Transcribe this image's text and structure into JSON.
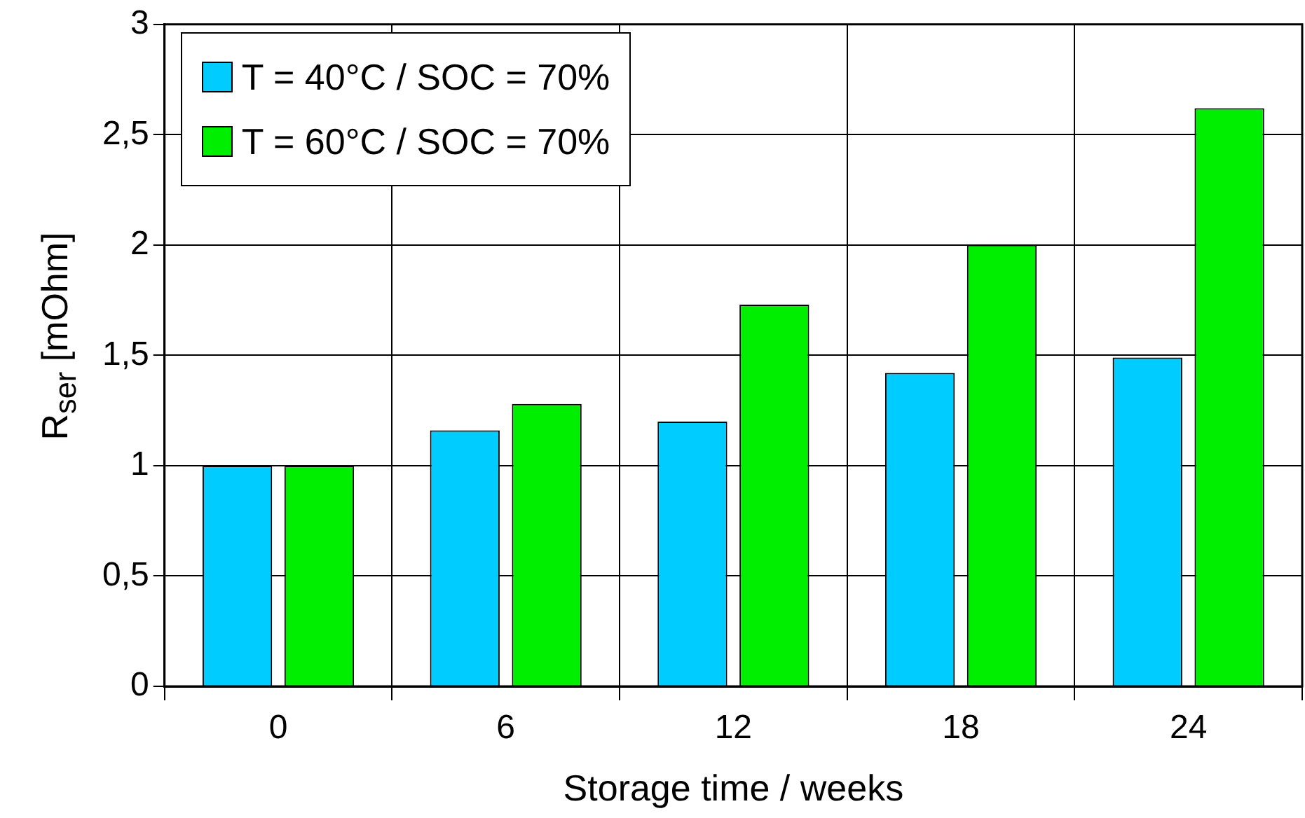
{
  "chart_data": {
    "type": "bar",
    "xlabel": "Storage time / weeks",
    "ylabel": "R$_{ser}$ [mOhm]",
    "categories": [
      "0",
      "6",
      "12",
      "18",
      "24"
    ],
    "series": [
      {
        "name": "T = 40°C / SOC = 70%",
        "color": "#00ccff",
        "values": [
          1.0,
          1.16,
          1.2,
          1.42,
          1.49
        ]
      },
      {
        "name": "T = 60°C / SOC = 70%",
        "color": "#00ee00",
        "values": [
          1.0,
          1.28,
          1.73,
          2.0,
          2.62
        ]
      }
    ],
    "ylim": [
      0,
      3
    ],
    "yticks": [
      0,
      {
        "value": 0.5,
        "label": "0,5"
      },
      1,
      {
        "value": 1.5,
        "label": "1,5"
      },
      2,
      {
        "value": 2.5,
        "label": "2,5"
      },
      3
    ],
    "grid": true,
    "legend": "top left"
  }
}
